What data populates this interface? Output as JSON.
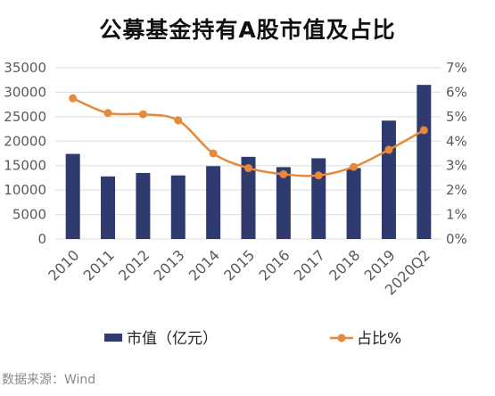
{
  "chart_data": {
    "type": "bar",
    "title": "公募基金持有A股市值及占比",
    "categories": [
      "2010",
      "2011",
      "2012",
      "2013",
      "2014",
      "2015",
      "2016",
      "2017",
      "2018",
      "2019",
      "2020Q2"
    ],
    "series": [
      {
        "name": "市值（亿元）",
        "type": "bar",
        "axis": "left",
        "values": [
          17400,
          12800,
          13500,
          13000,
          14900,
          16800,
          14700,
          16500,
          14500,
          24200,
          31500
        ]
      },
      {
        "name": "占比%",
        "type": "line",
        "axis": "right",
        "values": [
          5.75,
          5.15,
          5.1,
          4.85,
          3.5,
          2.9,
          2.65,
          2.6,
          2.95,
          3.65,
          4.45
        ]
      }
    ],
    "y_left": {
      "ticks": [
        "0",
        "5000",
        "10000",
        "15000",
        "20000",
        "25000",
        "30000",
        "35000"
      ],
      "range": [
        0,
        35000
      ]
    },
    "y_right": {
      "ticks": [
        "0%",
        "1%",
        "2%",
        "3%",
        "4%",
        "5%",
        "6%",
        "7%"
      ],
      "range": [
        0,
        7
      ]
    },
    "colors": {
      "bar": "#2f3a6e",
      "line": "#e8883a"
    },
    "grid": true,
    "legend": "bottom"
  },
  "source": "数据来源：Wind"
}
